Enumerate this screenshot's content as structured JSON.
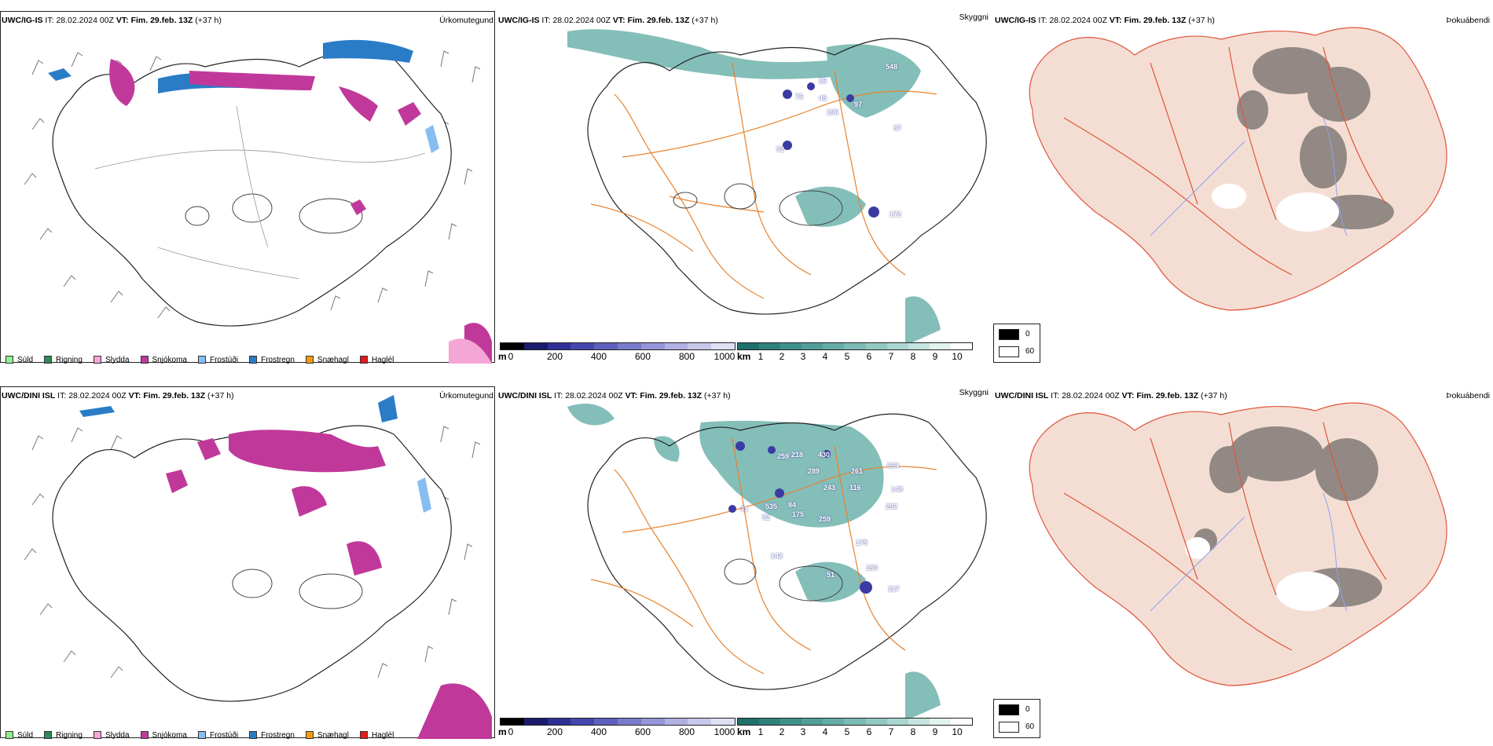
{
  "rows": [
    {
      "model": "UWC/IG-IS",
      "it_label": "IT:",
      "it_value": "28.02.2024 00Z",
      "vt_label": "VT:",
      "vt_value": "Fim. 29.feb. 13Z",
      "lead": "(+37 h)"
    },
    {
      "model": "UWC/DINI ISL",
      "it_label": "IT:",
      "it_value": "28.02.2024 00Z",
      "vt_label": "VT:",
      "vt_value": "Fim. 29.feb. 13Z",
      "lead": "(+37 h)"
    }
  ],
  "panels": {
    "precip_type_title": "Úrkomutegund",
    "visibility_title": "Skyggni",
    "fog_title": "Þokuábendi"
  },
  "precip_legend": [
    {
      "label": "Súld",
      "color": "#90ee90"
    },
    {
      "label": "Rigning",
      "color": "#2e8b57"
    },
    {
      "label": "Slydda",
      "color": "#f4a6d7"
    },
    {
      "label": "Snjókoma",
      "color": "#c0399a"
    },
    {
      "label": "Frostúði",
      "color": "#87bdf0"
    },
    {
      "label": "Frostregn",
      "color": "#2a7cc7"
    },
    {
      "label": "Snæhagl",
      "color": "#f39c12"
    },
    {
      "label": "Haglél",
      "color": "#e31a1c"
    }
  ],
  "elevation_bar": {
    "unit": "m",
    "ticks": [
      "0",
      "200",
      "400",
      "600",
      "800",
      "1000"
    ],
    "colors": [
      "#000000",
      "#1a1a6e",
      "#2f2f95",
      "#4545ad",
      "#5f5fbd",
      "#7a7acb",
      "#9595d8",
      "#b0b0e3",
      "#c8c8ec",
      "#e0e0f5"
    ]
  },
  "visibility_bar": {
    "unit": "km",
    "ticks": [
      "1",
      "2",
      "3",
      "4",
      "5",
      "6",
      "7",
      "8",
      "9",
      "10"
    ],
    "colors": [
      "#1f6f6a",
      "#2f817b",
      "#3e918a",
      "#519f98",
      "#66aca6",
      "#7cbab4",
      "#93c8c2",
      "#aad6d0",
      "#c4e4df",
      "#e2f2ef",
      "#ffffff"
    ]
  },
  "cloud_legend": {
    "dark_value": "0",
    "light_value": "60"
  },
  "visibility_labels_top": [
    "548",
    "97",
    "196",
    "45",
    "76",
    "26",
    "92",
    "37",
    "172"
  ],
  "visibility_labels_bottom": [
    "259",
    "218",
    "430",
    "289",
    "261",
    "884",
    "243",
    "116",
    "84",
    "535",
    "175",
    "259",
    "202",
    "148",
    "142",
    "92",
    "117",
    "160",
    "175",
    "51",
    "31"
  ]
}
